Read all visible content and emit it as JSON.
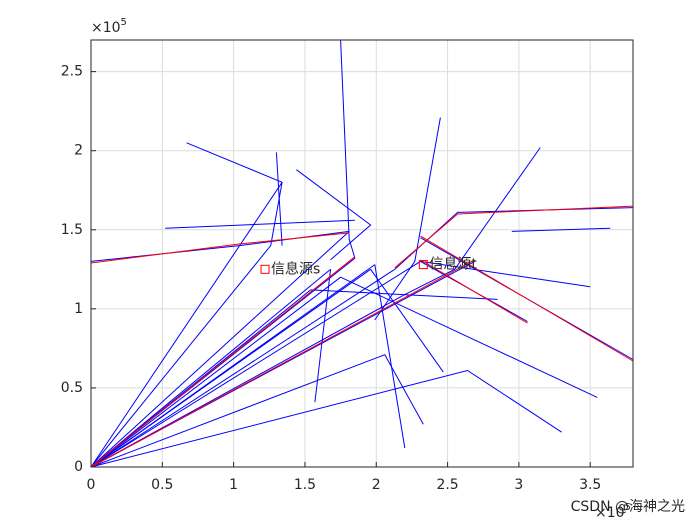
{
  "chart_data": {
    "type": "line",
    "xlim": [
      0,
      3.8
    ],
    "ylim": [
      0,
      2.7
    ],
    "xticks": [
      0,
      0.5,
      1,
      1.5,
      2,
      2.5,
      3,
      3.5
    ],
    "yticks": [
      0,
      0.5,
      1,
      1.5,
      2,
      2.5
    ],
    "x_exponent": {
      "base": "×10",
      "power": "5"
    },
    "y_exponent": {
      "base": "×10",
      "power": "5"
    },
    "grid": true,
    "series": [
      {
        "color": "#0000ff",
        "x": [
          1.75,
          1.81,
          1.85
        ],
        "values": [
          2.7,
          1.44,
          1.32
        ]
      },
      {
        "color": "#0000ff",
        "x": [
          0.67,
          1.34,
          1.26
        ],
        "values": [
          2.05,
          1.8,
          1.4
        ]
      },
      {
        "color": "#0000ff",
        "x": [
          1.3,
          1.34
        ],
        "values": [
          1.99,
          1.4
        ]
      },
      {
        "color": "#0000ff",
        "x": [
          2.45,
          2.27,
          1.99
        ],
        "values": [
          2.21,
          1.3,
          0.93
        ]
      },
      {
        "color": "#0000ff",
        "x": [
          3.15,
          2.55,
          2.2
        ],
        "values": [
          2.02,
          1.25,
          1.09
        ]
      },
      {
        "color": "#0000ff",
        "x": [
          3.8,
          2.57,
          2.13
        ],
        "values": [
          1.64,
          1.61,
          1.25
        ]
      },
      {
        "color": "#0000ff",
        "x": [
          0,
          1.04,
          1.81
        ],
        "values": [
          1.3,
          1.4,
          1.49
        ]
      },
      {
        "color": "#0000ff",
        "x": [
          0.52,
          1.85
        ],
        "values": [
          1.51,
          1.56
        ]
      },
      {
        "color": "#0000ff",
        "x": [
          1.44,
          1.96,
          1.68
        ],
        "values": [
          1.88,
          1.53,
          1.31
        ]
      },
      {
        "color": "#0000ff",
        "x": [
          2.31,
          3.8
        ],
        "values": [
          1.45,
          0.68
        ]
      },
      {
        "color": "#0000ff",
        "x": [
          2.31,
          3.06
        ],
        "values": [
          1.3,
          0.92
        ]
      },
      {
        "color": "#0000ff",
        "x": [
          1.75,
          3.55
        ],
        "values": [
          1.2,
          0.44
        ]
      },
      {
        "color": "#0000ff",
        "x": [
          1.96,
          2.47
        ],
        "values": [
          1.25,
          0.6
        ]
      },
      {
        "color": "#0000ff",
        "x": [
          1.68,
          1.57
        ],
        "values": [
          1.25,
          0.41
        ]
      },
      {
        "color": "#0000ff",
        "x": [
          1.99,
          2.2
        ],
        "values": [
          1.28,
          0.12
        ]
      },
      {
        "color": "#0000ff",
        "x": [
          0,
          2.64,
          3.3
        ],
        "values": [
          0,
          0.61,
          0.22
        ]
      },
      {
        "color": "#0000ff",
        "x": [
          0,
          2.06,
          2.33
        ],
        "values": [
          0,
          0.71,
          0.27
        ]
      },
      {
        "color": "#0000ff",
        "x": [
          2.31,
          3.5
        ],
        "values": [
          1.3,
          1.14
        ]
      },
      {
        "color": "#0000ff",
        "x": [
          2.95,
          3.64
        ],
        "values": [
          1.49,
          1.51
        ]
      },
      {
        "color": "#0000ff",
        "x": [
          1.54,
          2.85
        ],
        "values": [
          1.12,
          1.06
        ]
      },
      {
        "color": "#0000ff",
        "x": [
          0,
          1.34
        ],
        "values": [
          0,
          1.8
        ]
      },
      {
        "color": "#0000ff",
        "x": [
          0,
          1.26
        ],
        "values": [
          0,
          1.4
        ]
      },
      {
        "color": "#0000ff",
        "x": [
          0,
          1.85
        ],
        "values": [
          0,
          1.32
        ]
      },
      {
        "color": "#0000ff",
        "x": [
          0,
          2.31
        ],
        "values": [
          0,
          1.3
        ]
      },
      {
        "color": "#0000ff",
        "x": [
          0,
          2.69
        ],
        "values": [
          0,
          1.3
        ]
      },
      {
        "color": "#0000ff",
        "x": [
          0,
          1.75
        ],
        "values": [
          0,
          1.2
        ]
      },
      {
        "color": "#0000ff",
        "x": [
          0,
          1.96
        ],
        "values": [
          0,
          1.25
        ]
      },
      {
        "color": "#0000ff",
        "x": [
          0,
          2.2
        ],
        "values": [
          0,
          1.09
        ]
      },
      {
        "color": "#0000ff",
        "x": [
          0,
          1.68
        ],
        "values": [
          0,
          1.25
        ]
      },
      {
        "color": "#0000ff",
        "x": [
          0,
          1.99
        ],
        "values": [
          0,
          1.28
        ]
      },
      {
        "color": "#0000ff",
        "x": [
          0,
          1.81
        ],
        "values": [
          0,
          1.49
        ]
      },
      {
        "color": "#0000ff",
        "x": [
          0,
          1.54
        ],
        "values": [
          0,
          1.12
        ]
      },
      {
        "color": "#0000ff",
        "x": [
          0,
          2.13
        ],
        "values": [
          0,
          1.25
        ]
      },
      {
        "color": "#ff0000",
        "x": [
          2.31,
          3.8
        ],
        "values": [
          1.46,
          0.67
        ]
      },
      {
        "color": "#ff0000",
        "x": [
          3.8,
          2.57,
          2.13
        ],
        "values": [
          1.65,
          1.6,
          1.26
        ]
      },
      {
        "color": "#ff0000",
        "x": [
          0,
          1.04,
          1.81
        ],
        "values": [
          1.29,
          1.41,
          1.48
        ]
      },
      {
        "color": "#ff0000",
        "x": [
          2.31,
          3.06
        ],
        "values": [
          1.31,
          0.91
        ]
      },
      {
        "color": "#ff0000",
        "x": [
          0,
          2.69
        ],
        "values": [
          0,
          1.31
        ]
      },
      {
        "color": "#ff0000",
        "x": [
          0,
          1.85
        ],
        "values": [
          0,
          1.33
        ]
      }
    ],
    "annotations": [
      {
        "text": "信息源s",
        "x": 1.22,
        "y": 1.25
      },
      {
        "text": "信息源t",
        "x": 2.33,
        "y": 1.28
      }
    ],
    "watermark": "CSDN @海神之光"
  }
}
